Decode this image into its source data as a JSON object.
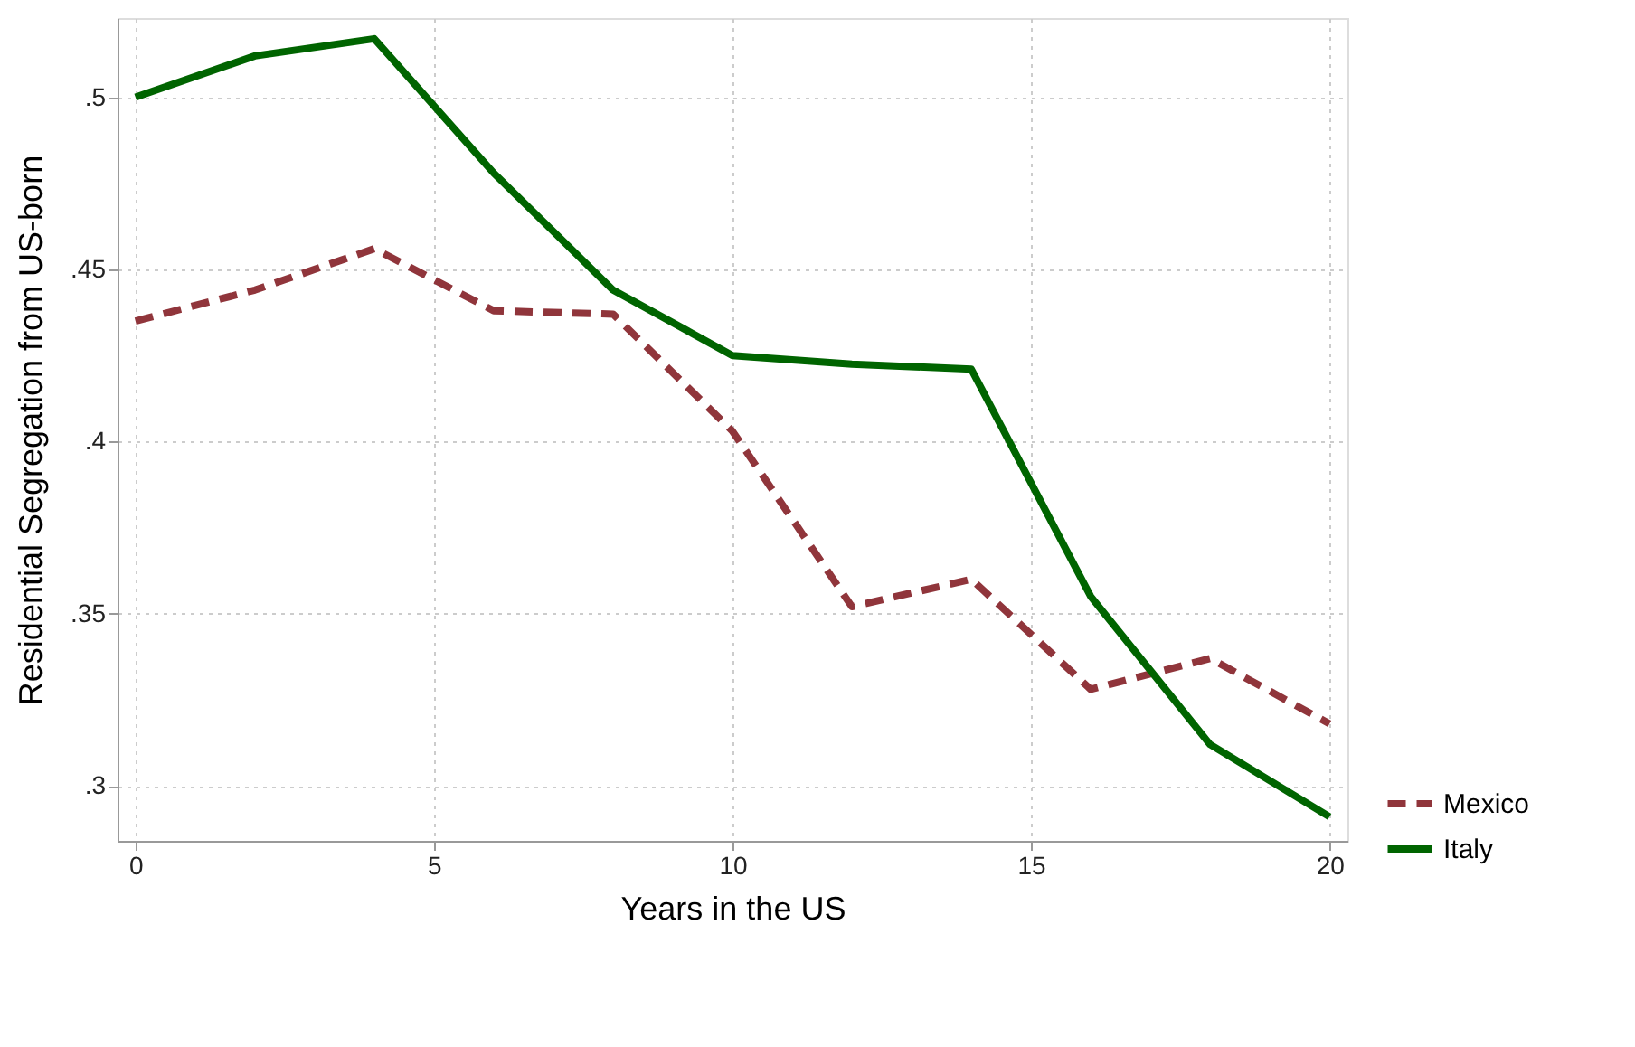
{
  "chart_data": {
    "type": "line",
    "xlabel": "Years in the US",
    "ylabel": "Residential Segregation from US-born",
    "x": [
      0,
      2,
      4,
      6,
      8,
      10,
      12,
      14,
      16,
      18,
      20
    ],
    "series": [
      {
        "name": "Mexico",
        "color": "#90353b",
        "line_style": "dashed",
        "values": [
          0.435,
          0.444,
          0.456,
          0.438,
          0.437,
          0.403,
          0.352,
          0.36,
          0.328,
          0.337,
          0.318
        ]
      },
      {
        "name": "Italy",
        "color": "#006400",
        "line_style": "solid",
        "values": [
          0.5,
          0.512,
          0.517,
          0.478,
          0.444,
          0.425,
          0.4225,
          0.421,
          0.355,
          0.312,
          0.291
        ]
      }
    ],
    "xlim": [
      -0.3,
      20.3
    ],
    "xticks": [
      0,
      5,
      10,
      15,
      20
    ],
    "ylim": [
      0.284,
      0.523
    ],
    "yticks": [
      {
        "value": 0.3,
        "label": ".3"
      },
      {
        "value": 0.35,
        "label": ".35"
      },
      {
        "value": 0.4,
        "label": ".4"
      },
      {
        "value": 0.45,
        "label": ".45"
      },
      {
        "value": 0.5,
        "label": ".5"
      }
    ],
    "grid": true,
    "legend": "bottom right",
    "marker": "none"
  }
}
